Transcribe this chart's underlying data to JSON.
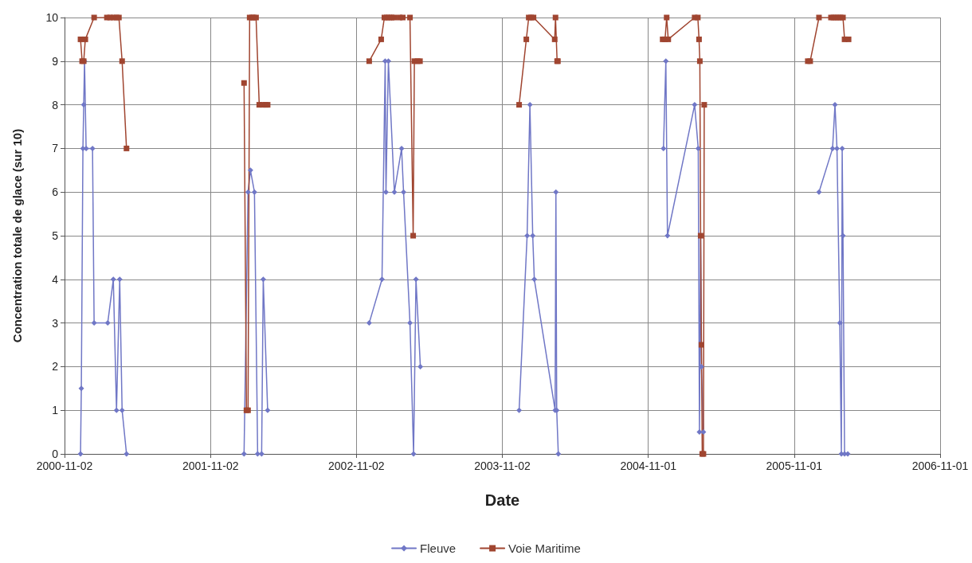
{
  "chart_data": {
    "type": "line",
    "xlabel": "Date",
    "ylabel": "Concentration totale de glace (sur 10)",
    "xlim": [
      "2000-11-02",
      "2006-11-01"
    ],
    "xticks": [
      "2000-11-02",
      "2001-11-02",
      "2002-11-02",
      "2003-11-02",
      "2004-11-01",
      "2005-11-01",
      "2006-11-01"
    ],
    "ylim": [
      0,
      10
    ],
    "yticks": [
      0,
      1,
      2,
      3,
      4,
      5,
      6,
      7,
      8,
      9,
      10
    ],
    "grid": true,
    "legend": "bottom",
    "line_style": "solid",
    "series": [
      {
        "name": "Fleuve",
        "color": "#7077c6",
        "marker": "diamond",
        "x": [
          "2000-12-12",
          "2000-12-14",
          "2000-12-18",
          "2000-12-20",
          "2000-12-22",
          "2000-12-26",
          "2001-01-11",
          "2001-01-15",
          "2001-02-18",
          "2001-03-04",
          "2001-03-12",
          "2001-03-20",
          "2001-03-26",
          "2001-04-06",
          "2001-07-01",
          "2002-01-25",
          "2002-02-04",
          "2002-02-10",
          "2002-02-20",
          "2002-02-28",
          "2002-03-10",
          "2002-03-14",
          "2002-03-25",
          "2002-07-01",
          "2002-12-04",
          "2003-01-05",
          "2003-01-13",
          "2003-01-15",
          "2003-01-21",
          "2003-02-05",
          "2003-02-23",
          "2003-02-28",
          "2003-03-16",
          "2003-03-25",
          "2003-03-31",
          "2003-04-11",
          "2003-07-01",
          "2003-12-14",
          "2004-01-03",
          "2004-01-10",
          "2004-01-17",
          "2004-01-21",
          "2004-03-13",
          "2004-03-15",
          "2004-03-17",
          "2004-03-21",
          "2004-07-01",
          "2004-12-09",
          "2004-12-15",
          "2004-12-19",
          "2005-02-25",
          "2005-03-06",
          "2005-03-09",
          "2005-03-12",
          "2005-03-14",
          "2005-03-19",
          "2005-07-01",
          "2006-01-02",
          "2006-02-05",
          "2006-02-11",
          "2006-02-16",
          "2006-02-23",
          "2006-02-27",
          "2006-03-01",
          "2006-03-03",
          "2006-03-07",
          "2006-03-15"
        ],
        "values": [
          0,
          1.5,
          7,
          8,
          9,
          7,
          7,
          3,
          3,
          4,
          1,
          4,
          1,
          0,
          null,
          0,
          6,
          6.5,
          6,
          0,
          0,
          4,
          1,
          null,
          3,
          4,
          9,
          6,
          9,
          6,
          7,
          6,
          3,
          0,
          4,
          2,
          null,
          1,
          5,
          8,
          5,
          4,
          1,
          6,
          1,
          0,
          null,
          7,
          9,
          5,
          8,
          7,
          0.5,
          5,
          2,
          0.5,
          null,
          6,
          7,
          8,
          7,
          3,
          0,
          7,
          5,
          0,
          0
        ]
      },
      {
        "name": "Voie Maritime",
        "color": "#a04530",
        "marker": "square",
        "x": [
          "2000-12-12",
          "2000-12-16",
          "2000-12-20",
          "2000-12-24",
          "2001-01-15",
          "2001-02-16",
          "2001-02-24",
          "2001-03-04",
          "2001-03-12",
          "2001-03-18",
          "2001-03-26",
          "2001-04-06",
          "2001-07-01",
          "2002-01-25",
          "2002-01-31",
          "2002-02-04",
          "2002-02-08",
          "2002-02-14",
          "2002-02-18",
          "2002-02-24",
          "2002-03-04",
          "2002-03-12",
          "2002-03-20",
          "2002-03-25",
          "2002-07-01",
          "2002-12-04",
          "2003-01-03",
          "2003-01-11",
          "2003-01-17",
          "2003-01-23",
          "2003-01-29",
          "2003-02-04",
          "2003-02-18",
          "2003-02-26",
          "2003-03-16",
          "2003-03-24",
          "2003-03-27",
          "2003-04-04",
          "2003-04-10",
          "2003-07-01",
          "2003-12-14",
          "2004-01-01",
          "2004-01-07",
          "2004-01-13",
          "2004-01-19",
          "2004-03-12",
          "2004-03-14",
          "2004-03-18",
          "2004-03-20",
          "2004-07-01",
          "2004-12-07",
          "2004-12-13",
          "2004-12-17",
          "2004-12-21",
          "2005-02-25",
          "2005-03-05",
          "2005-03-08",
          "2005-03-10",
          "2005-03-12",
          "2005-03-14",
          "2005-03-16",
          "2005-03-19",
          "2005-03-21",
          "2005-07-01",
          "2005-12-05",
          "2005-12-11",
          "2006-01-02",
          "2006-02-01",
          "2006-02-07",
          "2006-02-13",
          "2006-02-19",
          "2006-02-25",
          "2006-03-03",
          "2006-03-07",
          "2006-03-17"
        ],
        "values": [
          9.5,
          9,
          9,
          9.5,
          10,
          10,
          10,
          10,
          10,
          10,
          9,
          7,
          null,
          8.5,
          1,
          1,
          10,
          10,
          10,
          10,
          8,
          8,
          8,
          8,
          null,
          9,
          9.5,
          10,
          10,
          10,
          10,
          10,
          10,
          10,
          10,
          5,
          9,
          9,
          9,
          null,
          8,
          9.5,
          10,
          10,
          10,
          9.5,
          10,
          9,
          9,
          null,
          9.5,
          9.5,
          10,
          9.5,
          10,
          10,
          9.5,
          9,
          5,
          2.5,
          0,
          0,
          8,
          null,
          9,
          9,
          10,
          10,
          10,
          10,
          10,
          10,
          10,
          9.5,
          9.5
        ]
      }
    ]
  }
}
